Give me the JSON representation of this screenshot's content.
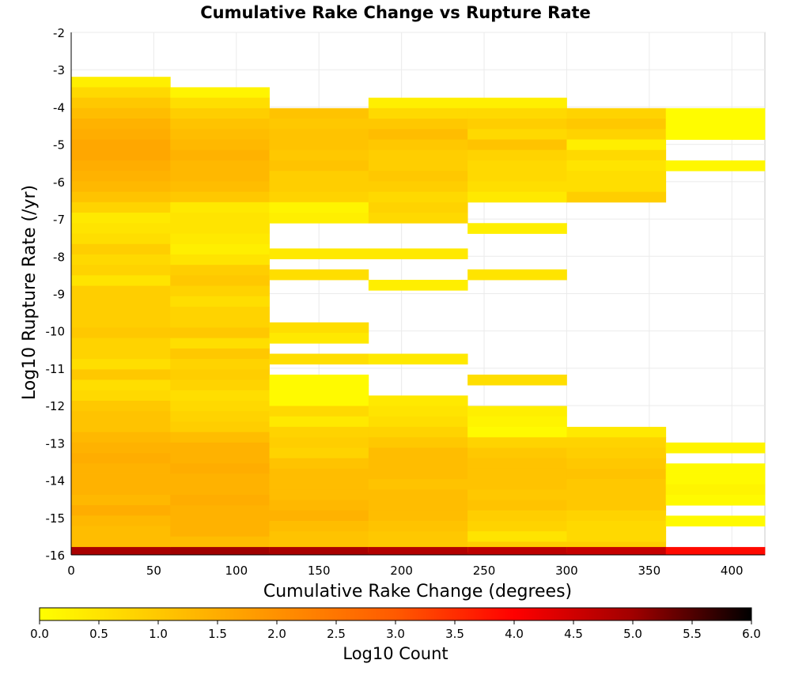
{
  "chart_data": {
    "type": "heatmap",
    "title": "Cumulative Rake Change vs Rupture Rate",
    "xlabel": "Cumulative Rake Change (degrees)",
    "ylabel": "Log10 Rupture Rate (/yr)",
    "xlim": [
      0,
      420
    ],
    "ylim": [
      -16,
      -2
    ],
    "x_bin_width": 60,
    "y_bin_width": 0.28,
    "grid": true,
    "xticks": [
      "0",
      "50",
      "100",
      "150",
      "200",
      "250",
      "300",
      "350",
      "400"
    ],
    "yticks": [
      "-2",
      "-3",
      "-4",
      "-5",
      "-6",
      "-7",
      "-8",
      "-9",
      "-10",
      "-11",
      "-12",
      "-13",
      "-14",
      "-15",
      "-16"
    ],
    "colorbar": {
      "label": "Log10 Count",
      "range": [
        0,
        6
      ],
      "ticks": [
        "0.0",
        "0.5",
        "1.0",
        "1.5",
        "2.0",
        "2.5",
        "3.0",
        "3.5",
        "4.0",
        "4.5",
        "5.0",
        "5.5",
        "6.0"
      ],
      "stops": [
        "#ffff00",
        "#ffc800",
        "#ff9100",
        "#ff5a00",
        "#ff0000",
        "#a00000",
        "#000000"
      ]
    },
    "columns": [
      {
        "x": [
          0,
          60
        ],
        "cells": [
          [
            -3.33,
            0.3
          ],
          [
            -3.61,
            0.7
          ],
          [
            -3.89,
            1.0
          ],
          [
            -4.17,
            1.2
          ],
          [
            -4.45,
            1.4
          ],
          [
            -4.73,
            1.5
          ],
          [
            -5.01,
            1.6
          ],
          [
            -5.29,
            1.6
          ],
          [
            -5.57,
            1.5
          ],
          [
            -5.85,
            1.4
          ],
          [
            -6.13,
            1.3
          ],
          [
            -6.41,
            1.1
          ],
          [
            -6.69,
            0.8
          ],
          [
            -6.97,
            0.4
          ],
          [
            -7.25,
            0.5
          ],
          [
            -7.53,
            0.6
          ],
          [
            -7.81,
            0.9
          ],
          [
            -8.09,
            0.7
          ],
          [
            -8.37,
            0.8
          ],
          [
            -8.65,
            0.5
          ],
          [
            -8.93,
            0.9
          ],
          [
            -9.21,
            0.9
          ],
          [
            -9.49,
            0.9
          ],
          [
            -9.77,
            0.9
          ],
          [
            -10.05,
            1.0
          ],
          [
            -10.33,
            0.8
          ],
          [
            -10.61,
            0.8
          ],
          [
            -10.89,
            0.6
          ],
          [
            -11.17,
            1.0
          ],
          [
            -11.45,
            0.6
          ],
          [
            -11.73,
            0.7
          ],
          [
            -12.01,
            1.0
          ],
          [
            -12.29,
            1.1
          ],
          [
            -12.57,
            1.1
          ],
          [
            -12.85,
            1.3
          ],
          [
            -13.13,
            1.4
          ],
          [
            -13.41,
            1.5
          ],
          [
            -13.69,
            1.4
          ],
          [
            -13.97,
            1.4
          ],
          [
            -14.25,
            1.4
          ],
          [
            -14.53,
            1.3
          ],
          [
            -14.81,
            1.5
          ],
          [
            -15.09,
            1.3
          ],
          [
            -15.37,
            1.2
          ],
          [
            -15.65,
            1.2
          ],
          [
            -15.93,
            4.9
          ]
        ]
      },
      {
        "x": [
          60,
          120
        ],
        "cells": [
          [
            -3.61,
            0.2
          ],
          [
            -3.89,
            0.6
          ],
          [
            -4.17,
            0.9
          ],
          [
            -4.45,
            1.1
          ],
          [
            -4.73,
            1.2
          ],
          [
            -5.01,
            1.3
          ],
          [
            -5.29,
            1.4
          ],
          [
            -5.57,
            1.3
          ],
          [
            -5.85,
            1.3
          ],
          [
            -6.13,
            1.2
          ],
          [
            -6.41,
            1.0
          ],
          [
            -6.69,
            0.4
          ],
          [
            -6.97,
            0.5
          ],
          [
            -7.25,
            0.5
          ],
          [
            -7.53,
            0.4
          ],
          [
            -7.81,
            0.3
          ],
          [
            -8.09,
            0.5
          ],
          [
            -8.37,
            0.9
          ],
          [
            -8.65,
            1.0
          ],
          [
            -8.93,
            0.8
          ],
          [
            -9.21,
            0.6
          ],
          [
            -9.49,
            0.8
          ],
          [
            -9.77,
            0.8
          ],
          [
            -10.05,
            1.0
          ],
          [
            -10.33,
            0.6
          ],
          [
            -10.61,
            1.0
          ],
          [
            -10.89,
            0.8
          ],
          [
            -11.17,
            0.9
          ],
          [
            -11.45,
            0.8
          ],
          [
            -11.73,
            0.6
          ],
          [
            -12.01,
            0.7
          ],
          [
            -12.29,
            0.8
          ],
          [
            -12.57,
            0.9
          ],
          [
            -12.85,
            1.2
          ],
          [
            -13.13,
            1.4
          ],
          [
            -13.41,
            1.4
          ],
          [
            -13.69,
            1.5
          ],
          [
            -13.97,
            1.4
          ],
          [
            -14.25,
            1.4
          ],
          [
            -14.53,
            1.5
          ],
          [
            -14.81,
            1.4
          ],
          [
            -15.09,
            1.4
          ],
          [
            -15.37,
            1.4
          ],
          [
            -15.65,
            1.2
          ],
          [
            -15.93,
            5.0
          ]
        ]
      },
      {
        "x": [
          120,
          180
        ],
        "cells": [
          [
            -4.17,
            1.1
          ],
          [
            -4.45,
            1.0
          ],
          [
            -4.73,
            1.1
          ],
          [
            -5.01,
            1.1
          ],
          [
            -5.29,
            1.0
          ],
          [
            -5.57,
            1.1
          ],
          [
            -5.85,
            0.9
          ],
          [
            -6.13,
            0.9
          ],
          [
            -6.41,
            0.8
          ],
          [
            -6.69,
            0.2
          ],
          [
            -6.97,
            0.3
          ],
          [
            -7.93,
            0.4
          ],
          [
            -8.49,
            0.6
          ],
          [
            -9.91,
            0.6
          ],
          [
            -10.19,
            0.4
          ],
          [
            -10.75,
            0.6
          ],
          [
            -11.31,
            0.1
          ],
          [
            -11.59,
            0.1
          ],
          [
            -11.87,
            0.1
          ],
          [
            -12.15,
            0.7
          ],
          [
            -12.43,
            0.4
          ],
          [
            -12.71,
            0.8
          ],
          [
            -12.99,
            0.9
          ],
          [
            -13.27,
            0.8
          ],
          [
            -13.55,
            1.1
          ],
          [
            -13.83,
            1.2
          ],
          [
            -14.11,
            1.2
          ],
          [
            -14.39,
            1.2
          ],
          [
            -14.67,
            1.3
          ],
          [
            -14.95,
            1.4
          ],
          [
            -15.23,
            1.2
          ],
          [
            -15.51,
            1.1
          ],
          [
            -15.79,
            1.1
          ],
          [
            -15.93,
            4.9
          ]
        ]
      },
      {
        "x": [
          180,
          240
        ],
        "cells": [
          [
            -3.89,
            0.3
          ],
          [
            -4.17,
            0.7
          ],
          [
            -4.45,
            1.0
          ],
          [
            -4.73,
            1.2
          ],
          [
            -5.01,
            1.0
          ],
          [
            -5.29,
            0.9
          ],
          [
            -5.57,
            0.9
          ],
          [
            -5.85,
            1.0
          ],
          [
            -6.13,
            0.9
          ],
          [
            -6.41,
            0.7
          ],
          [
            -6.69,
            0.8
          ],
          [
            -6.97,
            0.7
          ],
          [
            -7.93,
            0.4
          ],
          [
            -8.77,
            0.3
          ],
          [
            -10.75,
            0.4
          ],
          [
            -11.87,
            0.4
          ],
          [
            -12.15,
            0.5
          ],
          [
            -12.43,
            0.6
          ],
          [
            -12.71,
            0.8
          ],
          [
            -12.99,
            1.0
          ],
          [
            -13.27,
            1.2
          ],
          [
            -13.55,
            1.2
          ],
          [
            -13.83,
            1.2
          ],
          [
            -14.11,
            1.1
          ],
          [
            -14.39,
            1.2
          ],
          [
            -14.67,
            1.2
          ],
          [
            -14.95,
            1.2
          ],
          [
            -15.23,
            1.1
          ],
          [
            -15.51,
            1.0
          ],
          [
            -15.79,
            1.0
          ],
          [
            -15.93,
            4.8
          ]
        ]
      },
      {
        "x": [
          240,
          300
        ],
        "cells": [
          [
            -3.89,
            0.3
          ],
          [
            -4.17,
            0.7
          ],
          [
            -4.45,
            0.9
          ],
          [
            -4.73,
            0.7
          ],
          [
            -5.01,
            1.1
          ],
          [
            -5.29,
            0.8
          ],
          [
            -5.57,
            0.7
          ],
          [
            -5.85,
            0.7
          ],
          [
            -6.13,
            0.6
          ],
          [
            -6.41,
            0.4
          ],
          [
            -7.25,
            0.3
          ],
          [
            -8.49,
            0.5
          ],
          [
            -11.31,
            0.6
          ],
          [
            -12.15,
            0.3
          ],
          [
            -12.43,
            0.2
          ],
          [
            -12.71,
            0.1
          ],
          [
            -12.99,
            0.8
          ],
          [
            -13.27,
            1.0
          ],
          [
            -13.55,
            1.1
          ],
          [
            -13.83,
            1.1
          ],
          [
            -14.11,
            1.1
          ],
          [
            -14.39,
            1.0
          ],
          [
            -14.67,
            1.1
          ],
          [
            -14.95,
            0.9
          ],
          [
            -15.23,
            0.8
          ],
          [
            -15.51,
            0.5
          ],
          [
            -15.79,
            0.9
          ],
          [
            -15.93,
            4.7
          ]
        ]
      },
      {
        "x": [
          300,
          360
        ],
        "cells": [
          [
            -4.17,
            0.8
          ],
          [
            -4.45,
            1.0
          ],
          [
            -4.73,
            0.8
          ],
          [
            -5.01,
            0.3
          ],
          [
            -5.29,
            0.7
          ],
          [
            -5.57,
            0.5
          ],
          [
            -5.85,
            0.6
          ],
          [
            -6.13,
            0.6
          ],
          [
            -6.41,
            0.9
          ],
          [
            -12.71,
            0.4
          ],
          [
            -12.99,
            0.8
          ],
          [
            -13.27,
            0.9
          ],
          [
            -13.55,
            1.0
          ],
          [
            -13.83,
            1.1
          ],
          [
            -14.11,
            1.0
          ],
          [
            -14.39,
            1.0
          ],
          [
            -14.67,
            1.0
          ],
          [
            -14.95,
            0.8
          ],
          [
            -15.23,
            0.7
          ],
          [
            -15.51,
            0.7
          ],
          [
            -15.79,
            0.9
          ],
          [
            -15.93,
            4.6
          ]
        ]
      },
      {
        "x": [
          360,
          420
        ],
        "cells": [
          [
            -4.17,
            0.05
          ],
          [
            -4.45,
            0.05
          ],
          [
            -4.73,
            0.05
          ],
          [
            -5.57,
            0.15
          ],
          [
            -13.13,
            0.2
          ],
          [
            -13.69,
            0.1
          ],
          [
            -13.97,
            0.1
          ],
          [
            -14.25,
            0.2
          ],
          [
            -14.53,
            0.1
          ],
          [
            -15.09,
            0.1
          ],
          [
            -15.93,
            3.9
          ]
        ]
      }
    ]
  }
}
